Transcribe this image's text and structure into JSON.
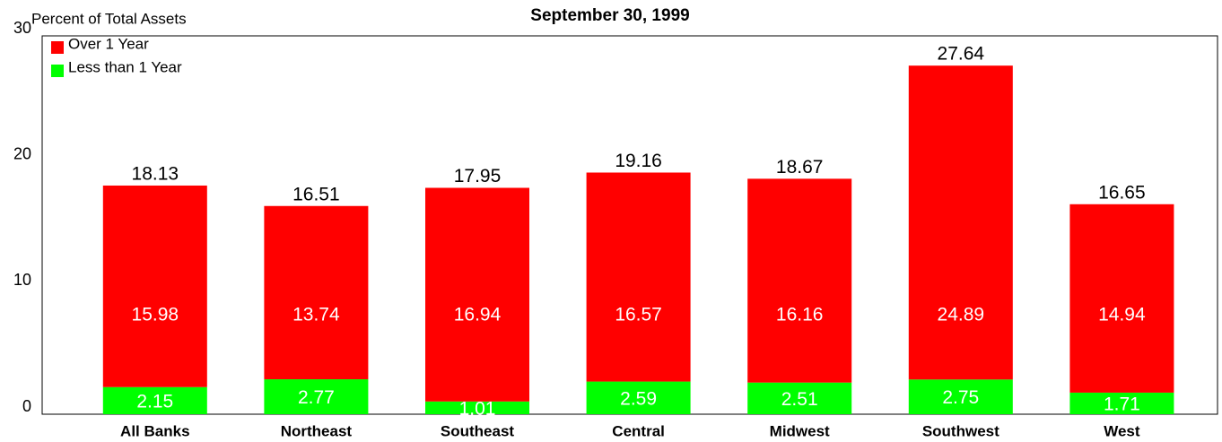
{
  "chart_data": {
    "type": "stacked_bar",
    "subtitle": "September 30, 1999",
    "y_label": "Percent of Total Assets",
    "categories": [
      "All Banks",
      "Northeast",
      "Southeast",
      "Central",
      "Midwest",
      "Southwest",
      "West"
    ],
    "series": [
      {
        "name": "Less than 1 Year",
        "color": "#00ff00",
        "values": [
          2.15,
          2.77,
          1.01,
          2.59,
          2.51,
          2.75,
          1.71
        ]
      },
      {
        "name": "Over 1 Year",
        "color": "#ff0000",
        "values": [
          15.98,
          13.74,
          16.94,
          16.57,
          16.16,
          24.89,
          14.94
        ]
      }
    ],
    "totals": [
      18.13,
      16.51,
      17.95,
      19.16,
      18.67,
      27.64,
      16.65
    ],
    "ylim": [
      0,
      30
    ],
    "yticks": [
      0,
      10,
      20,
      30
    ],
    "legend": "upper left"
  }
}
